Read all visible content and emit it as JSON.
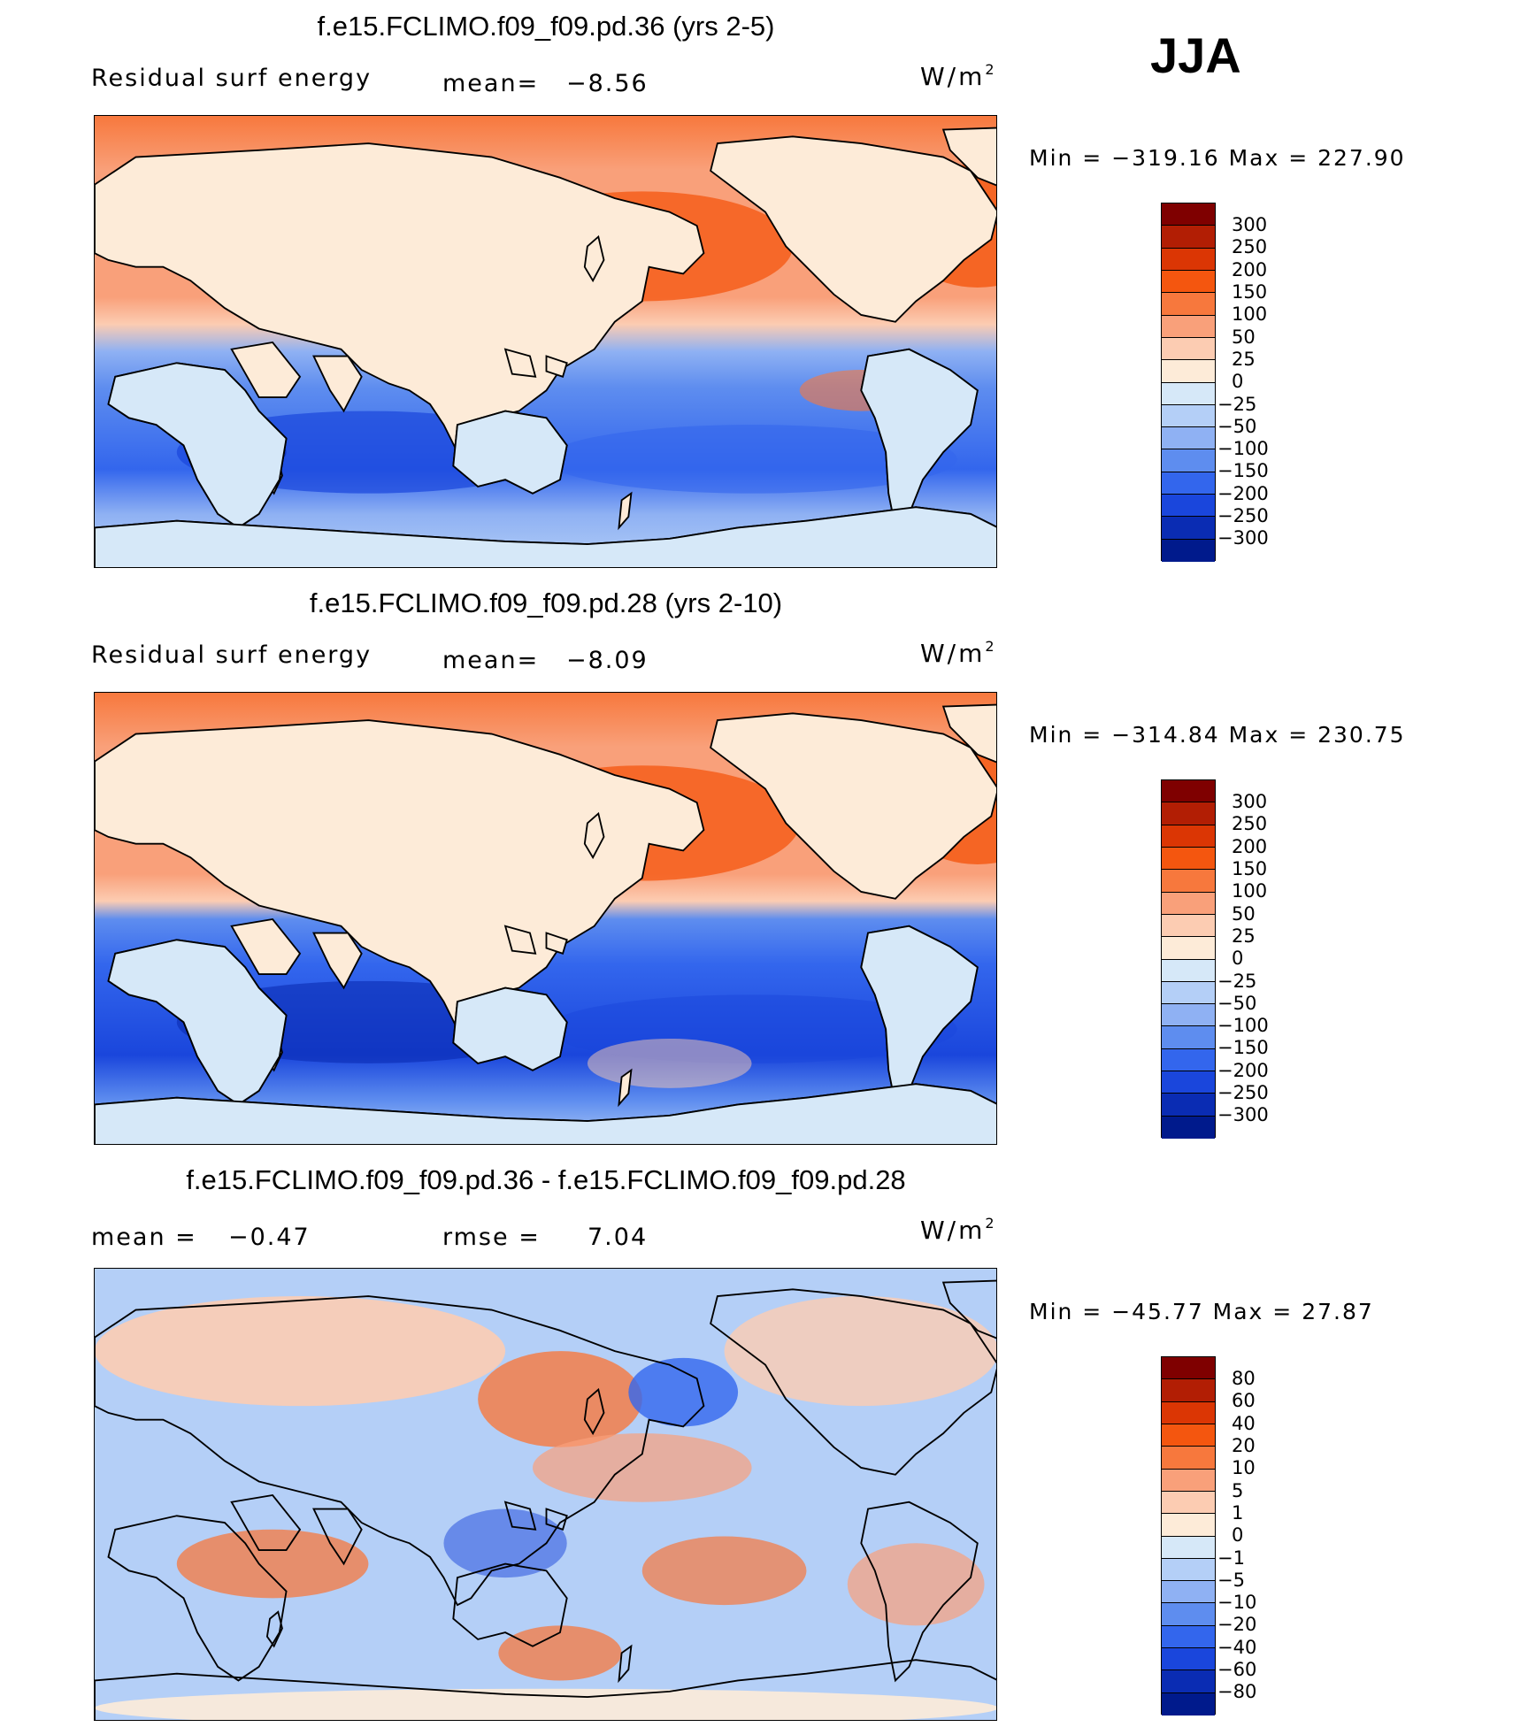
{
  "season": "JJA",
  "panels": [
    {
      "title": "f.e15.FCLIMO.f09_f09.pd.36 (yrs 2-5)",
      "left_label": "Residual surf energy",
      "stat1_label": "mean=",
      "stat1_value": "−8.56",
      "unit": "W/m",
      "unit_sup": "2",
      "min_max": "Min  =  −319.16  Max  =  227.90",
      "colorbar_levels": [
        "300",
        "250",
        "200",
        "150",
        "100",
        "50",
        "25",
        "0",
        "−25",
        "−50",
        "−100",
        "−150",
        "−200",
        "−250",
        "−300"
      ]
    },
    {
      "title": "f.e15.FCLIMO.f09_f09.pd.28 (yrs 2-10)",
      "left_label": "Residual surf energy",
      "stat1_label": "mean=",
      "stat1_value": "−8.09",
      "unit": "W/m",
      "unit_sup": "2",
      "min_max": "Min  =  −314.84  Max  =  230.75",
      "colorbar_levels": [
        "300",
        "250",
        "200",
        "150",
        "100",
        "50",
        "25",
        "0",
        "−25",
        "−50",
        "−100",
        "−150",
        "−200",
        "−250",
        "−300"
      ]
    },
    {
      "title": "f.e15.FCLIMO.f09_f09.pd.36 - f.e15.FCLIMO.f09_f09.pd.28",
      "left_label": "mean  =",
      "left_value": "−0.47",
      "stat1_label": "rmse  =",
      "stat1_value": "7.04",
      "unit": "W/m",
      "unit_sup": "2",
      "min_max": "Min  =  −45.77  Max  =    27.87",
      "colorbar_levels": [
        "80",
        "60",
        "40",
        "20",
        "10",
        "5",
        "1",
        "0",
        "−1",
        "−5",
        "−10",
        "−20",
        "−40",
        "−60",
        "−80"
      ]
    }
  ],
  "colors": {
    "scale": [
      "#7f0000",
      "#b21e04",
      "#db3604",
      "#f4560f",
      "#f7783d",
      "#f9a07a",
      "#fcccb2",
      "#fdebd8",
      "#d6e8f8",
      "#b4cff7",
      "#8fb1f3",
      "#5e8def",
      "#3366ed",
      "#1a46dc",
      "#0a2cb3",
      "#001a8c",
      "#000b6e"
    ]
  }
}
